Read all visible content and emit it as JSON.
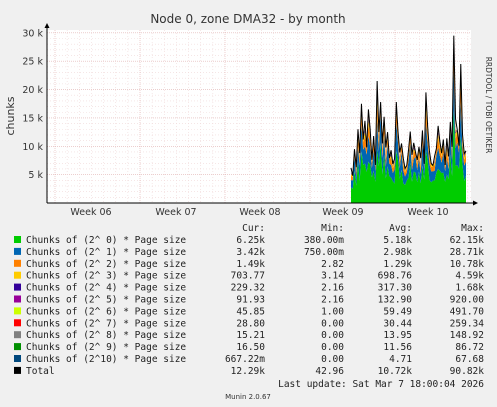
{
  "chart_data": {
    "type": "area",
    "title": "Node 0, zone DMA32 - by month",
    "ylabel": "chunks",
    "side_label": "RRDTOOL / TOBI OETIKER",
    "x_ticks": [
      "Week 06",
      "Week 07",
      "Week 08",
      "Week 09",
      "Week 10"
    ],
    "y_ticks": [
      "5 k",
      "10 k",
      "15 k",
      "20 k",
      "25 k",
      "30 k"
    ],
    "y_tick_values": [
      5000,
      10000,
      15000,
      20000,
      25000,
      30000
    ],
    "ylim": [
      0,
      30500
    ],
    "legend_columns": [
      "Cur:",
      "Min:",
      "Avg:",
      "Max:"
    ],
    "series": [
      {
        "name": "Chunks of (2^ 0) * Page size",
        "color": "#00cc00",
        "cur": "6.25k",
        "min": "380.00m",
        "avg": "5.18k",
        "max": "62.15k"
      },
      {
        "name": "Chunks of (2^ 1) * Page size",
        "color": "#0066b3",
        "cur": "3.42k",
        "min": "750.00m",
        "avg": "2.98k",
        "max": "28.71k"
      },
      {
        "name": "Chunks of (2^ 2) * Page size",
        "color": "#ff8000",
        "cur": "1.49k",
        "min": "2.82",
        "avg": "1.29k",
        "max": "10.78k"
      },
      {
        "name": "Chunks of (2^ 3) * Page size",
        "color": "#ffcc00",
        "cur": "703.77",
        "min": "3.14",
        "avg": "698.76",
        "max": "4.59k"
      },
      {
        "name": "Chunks of (2^ 4) * Page size",
        "color": "#330099",
        "cur": "229.32",
        "min": "2.16",
        "avg": "317.30",
        "max": "1.68k"
      },
      {
        "name": "Chunks of (2^ 5) * Page size",
        "color": "#990099",
        "cur": "91.93",
        "min": "2.16",
        "avg": "132.90",
        "max": "920.00"
      },
      {
        "name": "Chunks of (2^ 6) * Page size",
        "color": "#ccff00",
        "cur": "45.85",
        "min": "1.00",
        "avg": "59.49",
        "max": "491.70"
      },
      {
        "name": "Chunks of (2^ 7) * Page size",
        "color": "#ff0000",
        "cur": "28.80",
        "min": "0.00",
        "avg": "30.44",
        "max": "259.34"
      },
      {
        "name": "Chunks of (2^ 8) * Page size",
        "color": "#808080",
        "cur": "15.21",
        "min": "0.00",
        "avg": "13.95",
        "max": "148.92"
      },
      {
        "name": "Chunks of (2^ 9) * Page size",
        "color": "#008f00",
        "cur": "16.50",
        "min": "0.00",
        "avg": "11.56",
        "max": "86.72"
      },
      {
        "name": "Chunks of (2^10) * Page size",
        "color": "#00487d",
        "cur": "667.22m",
        "min": "0.00",
        "avg": "4.71",
        "max": "67.68"
      },
      {
        "name": "Total",
        "color": "#000000",
        "cur": "12.29k",
        "min": "42.96",
        "avg": "10.72k",
        "max": "90.82k"
      }
    ],
    "total_series_approx": [
      6200,
      4800,
      9500,
      6300,
      13000,
      8800,
      17500,
      11200,
      14500,
      9800,
      16500,
      13000,
      7600,
      11800,
      6700,
      21500,
      12500,
      17800,
      10500,
      15200,
      9800,
      12500,
      7900,
      9300,
      6900,
      7800,
      17800,
      12500,
      8900,
      10500,
      7900,
      6100,
      6600,
      9300,
      12600,
      8500,
      10600,
      9000,
      7600,
      9900,
      7900,
      12800,
      6900,
      19500,
      13500,
      9200,
      7000,
      6600,
      8300,
      9600,
      13600,
      10900,
      8800,
      11200,
      6700,
      11400,
      8200,
      14300,
      9900,
      29500,
      14800,
      12900,
      10100,
      24500,
      12100,
      8700,
      9200
    ],
    "last_update": "Last update: Sat Mar  7 18:00:04 2026",
    "footer": "Munin 2.0.67"
  }
}
